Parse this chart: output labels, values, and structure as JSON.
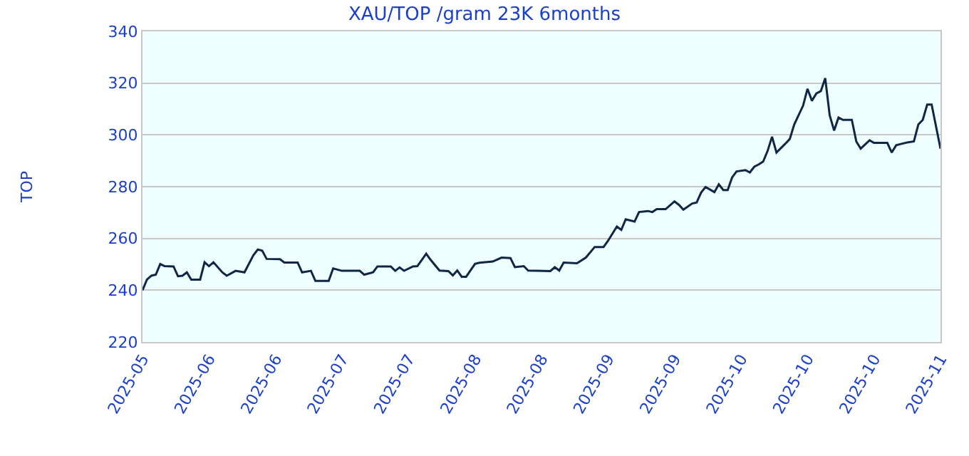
{
  "chart_data": {
    "type": "line",
    "title": "XAU/TOP /gram 23K 6months",
    "ylabel": "TOP",
    "x": [
      "2025-05-19",
      "2025-05-20",
      "2025-05-21",
      "2025-05-22",
      "2025-05-23",
      "2025-05-24",
      "2025-05-26",
      "2025-05-27",
      "2025-05-28",
      "2025-05-29",
      "2025-05-30",
      "2025-06-01",
      "2025-06-02",
      "2025-06-03",
      "2025-06-04",
      "2025-06-06",
      "2025-06-07",
      "2025-06-09",
      "2025-06-11",
      "2025-06-13",
      "2025-06-14",
      "2025-06-15",
      "2025-06-16",
      "2025-06-19",
      "2025-06-20",
      "2025-06-23",
      "2025-06-24",
      "2025-06-26",
      "2025-06-27",
      "2025-06-30",
      "2025-07-01",
      "2025-07-03",
      "2025-07-07",
      "2025-07-08",
      "2025-07-10",
      "2025-07-11",
      "2025-07-14",
      "2025-07-15",
      "2025-07-16",
      "2025-07-17",
      "2025-07-19",
      "2025-07-20",
      "2025-07-22",
      "2025-07-23",
      "2025-07-25",
      "2025-07-27",
      "2025-07-28",
      "2025-07-29",
      "2025-07-30",
      "2025-07-31",
      "2025-08-02",
      "2025-08-03",
      "2025-08-06",
      "2025-08-08",
      "2025-08-10",
      "2025-08-11",
      "2025-08-13",
      "2025-08-14",
      "2025-08-19",
      "2025-08-20",
      "2025-08-21",
      "2025-08-22",
      "2025-08-25",
      "2025-08-27",
      "2025-08-29",
      "2025-08-31",
      "2025-09-01",
      "2025-09-03",
      "2025-09-04",
      "2025-09-05",
      "2025-09-07",
      "2025-09-08",
      "2025-09-10",
      "2025-09-11",
      "2025-09-12",
      "2025-09-14",
      "2025-09-16",
      "2025-09-17",
      "2025-09-18",
      "2025-09-20",
      "2025-09-21",
      "2025-09-22",
      "2025-09-23",
      "2025-09-25",
      "2025-09-26",
      "2025-09-27",
      "2025-09-28",
      "2025-09-29",
      "2025-09-30",
      "2025-10-02",
      "2025-10-03",
      "2025-10-04",
      "2025-10-05",
      "2025-10-06",
      "2025-10-07",
      "2025-10-08",
      "2025-10-09",
      "2025-10-11",
      "2025-10-12",
      "2025-10-13",
      "2025-10-15",
      "2025-10-16",
      "2025-10-17",
      "2025-10-18",
      "2025-10-19",
      "2025-10-20",
      "2025-10-21",
      "2025-10-22",
      "2025-10-23",
      "2025-10-24",
      "2025-10-26",
      "2025-10-27",
      "2025-10-28",
      "2025-10-30",
      "2025-10-31",
      "2025-11-03",
      "2025-11-04",
      "2025-11-05",
      "2025-11-07",
      "2025-11-09",
      "2025-11-10",
      "2025-11-11",
      "2025-11-12",
      "2025-11-13",
      "2025-11-15"
    ],
    "series": [
      {
        "color": "#0f2744",
        "values": [
          240,
          244.1,
          245.6,
          246,
          250.1,
          249.3,
          249.2,
          245.4,
          245.6,
          246.9,
          244.1,
          244.1,
          250.8,
          249.3,
          250.8,
          246.9,
          245.6,
          247.5,
          246.9,
          253.5,
          255.7,
          255.3,
          252.1,
          252,
          250.7,
          250.7,
          246.9,
          247.5,
          243.6,
          243.6,
          248.4,
          247.5,
          247.5,
          246,
          246.9,
          249.2,
          249.2,
          247.5,
          248.8,
          247.5,
          249.2,
          249.3,
          254.1,
          251.7,
          247.6,
          247.4,
          245.7,
          247.6,
          245.2,
          245.2,
          250.2,
          250.6,
          251.1,
          252.6,
          252.4,
          248.9,
          249.3,
          247.6,
          247.4,
          248.9,
          247.6,
          250.7,
          250.4,
          252.6,
          256.7,
          256.7,
          259.1,
          264.6,
          263.3,
          267.4,
          266.5,
          270.2,
          270.6,
          270.2,
          271.3,
          271.3,
          274.3,
          273,
          271.1,
          273.5,
          273.9,
          277.7,
          279.9,
          277.9,
          280.9,
          278.7,
          278.7,
          283.6,
          285.9,
          286.4,
          285.5,
          287.7,
          288.6,
          289.7,
          293.8,
          299.3,
          293.2,
          296.6,
          298.4,
          304,
          311.3,
          317.8,
          313.2,
          316,
          316.9,
          321.9,
          307.6,
          301.7,
          306.7,
          305.8,
          305.8,
          297.5,
          294.7,
          297.9,
          296.9,
          296.9,
          293.2,
          296,
          296.9,
          297.5,
          304,
          305.8,
          311.7,
          311.7,
          294.7
        ]
      }
    ],
    "xlim": [
      "2025-05-19",
      "2025-11-15"
    ],
    "xticks": [
      {
        "value": "2025-05-19",
        "label": "2025-05"
      },
      {
        "value": "2025-06-03",
        "label": "2025-06"
      },
      {
        "value": "2025-06-18",
        "label": "2025-06"
      },
      {
        "value": "2025-07-03",
        "label": "2025-07"
      },
      {
        "value": "2025-07-18",
        "label": "2025-07"
      },
      {
        "value": "2025-08-02",
        "label": "2025-08"
      },
      {
        "value": "2025-08-17",
        "label": "2025-08"
      },
      {
        "value": "2025-09-01",
        "label": "2025-09"
      },
      {
        "value": "2025-09-16",
        "label": "2025-09"
      },
      {
        "value": "2025-10-01",
        "label": "2025-10"
      },
      {
        "value": "2025-10-16",
        "label": "2025-10"
      },
      {
        "value": "2025-10-31",
        "label": "2025-10"
      },
      {
        "value": "2025-11-15",
        "label": "2025-11"
      }
    ],
    "ylim": [
      220,
      340
    ],
    "yticks": [
      220,
      240,
      260,
      280,
      300,
      320,
      340
    ],
    "grid": "y",
    "legend": false,
    "marker": "none",
    "line_style": "solid"
  }
}
